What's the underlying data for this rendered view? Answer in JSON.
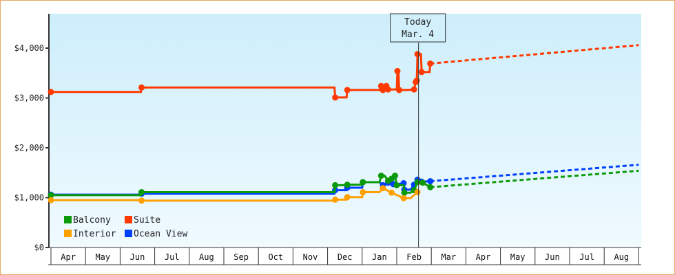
{
  "chart_data": {
    "type": "line",
    "title": "",
    "xlabel": "",
    "ylabel": "",
    "ylim": [
      0,
      4700
    ],
    "y_ticks": [
      {
        "value": 0,
        "label": "$0"
      },
      {
        "value": 1000,
        "label": "$1,000"
      },
      {
        "value": 2000,
        "label": "$2,000"
      },
      {
        "value": 3000,
        "label": "$3,000"
      },
      {
        "value": 4000,
        "label": "$4,000"
      }
    ],
    "x_months": [
      "Apr",
      "May",
      "Jun",
      "Jul",
      "Aug",
      "Sep",
      "Oct",
      "Nov",
      "Dec",
      "Jan",
      "Feb",
      "Mar",
      "Apr",
      "May",
      "Jun",
      "Jul",
      "Aug"
    ],
    "grid": false,
    "today_marker": {
      "line1": "Today",
      "line2": "Mar. 4",
      "x_month_index": 10.65
    },
    "legend": {
      "position": "lower-left",
      "entries": [
        {
          "name": "Balcony",
          "color": "#0a9a0a"
        },
        {
          "name": "Suite",
          "color": "#ff3a00"
        },
        {
          "name": "Interior",
          "color": "#ffa000"
        },
        {
          "name": "Ocean View",
          "color": "#0040ff"
        }
      ]
    },
    "series": [
      {
        "name": "Suite",
        "color": "#ff3a00",
        "points": [
          [
            0,
            3120
          ],
          [
            2.6,
            3120
          ],
          [
            2.62,
            3210
          ],
          [
            8.2,
            3210
          ],
          [
            8.22,
            3010
          ],
          [
            8.55,
            3010
          ],
          [
            8.57,
            3160
          ],
          [
            9.5,
            3160
          ],
          [
            9.55,
            3240
          ],
          [
            9.6,
            3160
          ],
          [
            9.7,
            3240
          ],
          [
            9.75,
            3170
          ],
          [
            9.85,
            3170
          ],
          [
            10.0,
            3170
          ],
          [
            10.02,
            3540
          ],
          [
            10.05,
            3540
          ],
          [
            10.07,
            3160
          ],
          [
            10.3,
            3160
          ],
          [
            10.5,
            3170
          ],
          [
            10.55,
            3320
          ],
          [
            10.58,
            3350
          ],
          [
            10.6,
            3880
          ],
          [
            10.7,
            3880
          ],
          [
            10.72,
            3520
          ],
          [
            10.95,
            3520
          ],
          [
            10.97,
            3690
          ]
        ],
        "projection": [
          [
            10.97,
            3690
          ],
          [
            17,
            4060
          ]
        ]
      },
      {
        "name": "Ocean View",
        "color": "#0040ff",
        "points": [
          [
            0,
            1060
          ],
          [
            2.6,
            1060
          ],
          [
            2.62,
            1080
          ],
          [
            8.2,
            1080
          ],
          [
            8.22,
            1150
          ],
          [
            8.55,
            1150
          ],
          [
            8.57,
            1200
          ],
          [
            9.0,
            1200
          ],
          [
            9.02,
            1310
          ],
          [
            9.5,
            1310
          ],
          [
            9.6,
            1250
          ],
          [
            9.75,
            1300
          ],
          [
            9.9,
            1270
          ],
          [
            10.0,
            1270
          ],
          [
            10.2,
            1290
          ],
          [
            10.22,
            1160
          ],
          [
            10.4,
            1160
          ],
          [
            10.5,
            1260
          ],
          [
            10.6,
            1360
          ],
          [
            10.7,
            1360
          ],
          [
            10.72,
            1320
          ],
          [
            10.97,
            1330
          ]
        ],
        "projection": [
          [
            10.97,
            1330
          ],
          [
            17,
            1660
          ]
        ]
      },
      {
        "name": "Balcony",
        "color": "#0a9a0a",
        "points": [
          [
            0,
            1050
          ],
          [
            2.6,
            1050
          ],
          [
            2.62,
            1110
          ],
          [
            8.2,
            1110
          ],
          [
            8.22,
            1250
          ],
          [
            8.55,
            1250
          ],
          [
            8.57,
            1260
          ],
          [
            9.0,
            1260
          ],
          [
            9.02,
            1310
          ],
          [
            9.5,
            1310
          ],
          [
            9.55,
            1440
          ],
          [
            9.65,
            1440
          ],
          [
            9.75,
            1340
          ],
          [
            9.85,
            1380
          ],
          [
            9.95,
            1440
          ],
          [
            10.0,
            1250
          ],
          [
            10.2,
            1250
          ],
          [
            10.22,
            1100
          ],
          [
            10.4,
            1100
          ],
          [
            10.5,
            1150
          ],
          [
            10.6,
            1310
          ],
          [
            10.7,
            1310
          ],
          [
            10.75,
            1300
          ],
          [
            10.97,
            1210
          ]
        ],
        "projection": [
          [
            10.97,
            1210
          ],
          [
            17,
            1540
          ]
        ]
      },
      {
        "name": "Interior",
        "color": "#ffa000",
        "points": [
          [
            0,
            950
          ],
          [
            2.6,
            950
          ],
          [
            2.62,
            940
          ],
          [
            8.2,
            940
          ],
          [
            8.22,
            960
          ],
          [
            8.55,
            960
          ],
          [
            8.57,
            1010
          ],
          [
            9.0,
            1010
          ],
          [
            9.02,
            1110
          ],
          [
            9.5,
            1110
          ],
          [
            9.6,
            1190
          ],
          [
            9.85,
            1100
          ],
          [
            10.2,
            990
          ],
          [
            10.4,
            990
          ],
          [
            10.6,
            1110
          ]
        ],
        "projection": []
      }
    ]
  }
}
